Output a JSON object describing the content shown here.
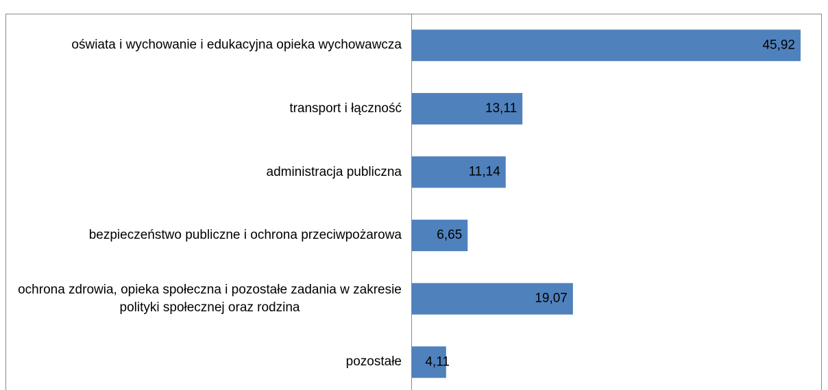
{
  "chart_data": {
    "type": "bar",
    "orientation": "horizontal",
    "categories": [
      "oświata i wychowanie i edukacyjna opieka wychowawcza",
      "transport i łączność",
      "administracja publiczna",
      "bezpieczeństwo publiczne i ochrona przeciwpożarowa",
      "ochrona zdrowia, opieka społeczna i pozostałe zadania w zakresie polityki społecznej oraz rodzina",
      "pozostałe"
    ],
    "values": [
      45.92,
      13.11,
      11.14,
      6.65,
      19.07,
      4.11
    ],
    "value_labels": [
      "45,92",
      "13,11",
      "11,14",
      "6,65",
      "19,07",
      "4,11"
    ],
    "color": "#4f81bd"
  }
}
